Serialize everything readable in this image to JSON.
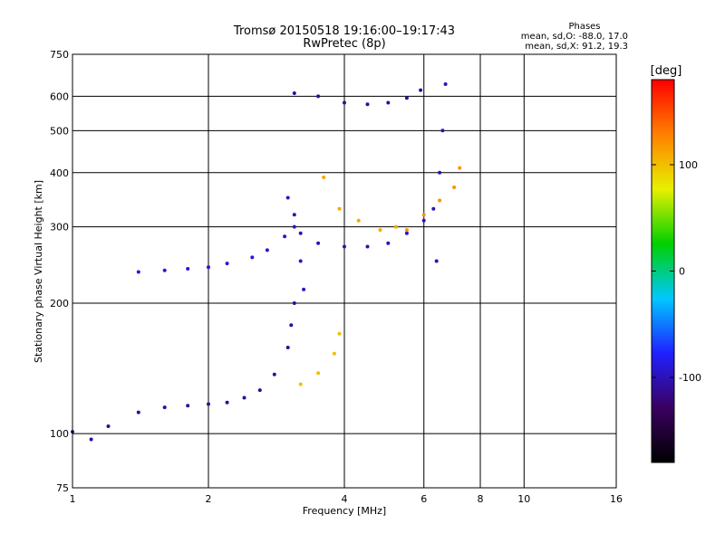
{
  "chart_data": {
    "type": "scatter",
    "title": "Tromsø 20150518 19:16:00–19:17:43",
    "subtitle": "RwPretec (8p)",
    "xlabel": "Frequency [MHz]",
    "ylabel": "Stationary phase Virtual Height [km]",
    "x_scale": "log",
    "y_scale": "log",
    "xlim": [
      1,
      16
    ],
    "ylim": [
      75,
      750
    ],
    "x_ticks": [
      1,
      2,
      4,
      6,
      8,
      10,
      16
    ],
    "y_ticks": [
      75,
      100,
      200,
      300,
      400,
      500,
      600,
      750
    ],
    "grid": true,
    "stats": {
      "heading": "Phases",
      "line_o": "mean, sd,O: -88.0, 17.0",
      "line_x": "mean, sd,X:  91.2, 19.3"
    },
    "colorbar": {
      "label": "[deg]",
      "ticks": [
        100,
        0,
        -100
      ],
      "range": [
        -180,
        180
      ],
      "colormap": [
        "#000000",
        "#3a0060",
        "#2020ff",
        "#00c8ff",
        "#00d000",
        "#e8f000",
        "#ff8000",
        "#ff0000"
      ]
    },
    "series": [
      {
        "points": [
          [
            1.0,
            101
          ],
          [
            1.1,
            97
          ],
          [
            1.2,
            104
          ],
          [
            1.4,
            112
          ],
          [
            1.6,
            115
          ],
          [
            1.8,
            116
          ],
          [
            2.0,
            117
          ],
          [
            2.2,
            118
          ],
          [
            2.4,
            121
          ],
          [
            2.6,
            126
          ],
          [
            2.8,
            137
          ],
          [
            3.0,
            158
          ],
          [
            3.05,
            178
          ],
          [
            3.1,
            200
          ]
        ],
        "phase": -110
      },
      {
        "points": [
          [
            3.2,
            130
          ],
          [
            3.5,
            138
          ],
          [
            3.8,
            153
          ],
          [
            3.9,
            170
          ]
        ],
        "phase": 100
      },
      {
        "points": [
          [
            1.4,
            236
          ],
          [
            1.6,
            238
          ],
          [
            1.8,
            240
          ],
          [
            2.0,
            242
          ],
          [
            2.2,
            247
          ],
          [
            2.5,
            255
          ],
          [
            2.7,
            265
          ],
          [
            2.95,
            285
          ]
        ],
        "phase": -90
      },
      {
        "points": [
          [
            3.1,
            320
          ],
          [
            3.2,
            290
          ],
          [
            3.5,
            275
          ],
          [
            4.0,
            270
          ],
          [
            4.5,
            270
          ],
          [
            5.0,
            275
          ],
          [
            5.5,
            290
          ],
          [
            6.0,
            310
          ],
          [
            6.3,
            330
          ]
        ],
        "phase": -100
      },
      {
        "points": [
          [
            3.6,
            390
          ],
          [
            3.9,
            330
          ],
          [
            4.3,
            310
          ],
          [
            4.8,
            295
          ],
          [
            5.2,
            300
          ]
        ],
        "phase": 110
      },
      {
        "points": [
          [
            5.5,
            295
          ],
          [
            6.0,
            320
          ],
          [
            6.5,
            345
          ],
          [
            7.0,
            370
          ],
          [
            7.2,
            410
          ]
        ],
        "phase": 120
      },
      {
        "points": [
          [
            3.1,
            610
          ],
          [
            3.5,
            600
          ],
          [
            4.0,
            580
          ],
          [
            4.5,
            575
          ],
          [
            5.0,
            580
          ],
          [
            5.5,
            595
          ],
          [
            5.9,
            620
          ]
        ],
        "phase": -110
      },
      {
        "points": [
          [
            6.4,
            250
          ],
          [
            6.5,
            400
          ],
          [
            6.6,
            500
          ],
          [
            6.7,
            640
          ]
        ],
        "phase": -100
      },
      {
        "points": [
          [
            3.0,
            350
          ],
          [
            3.1,
            300
          ],
          [
            3.2,
            250
          ],
          [
            3.25,
            215
          ]
        ],
        "phase": -95
      }
    ]
  }
}
